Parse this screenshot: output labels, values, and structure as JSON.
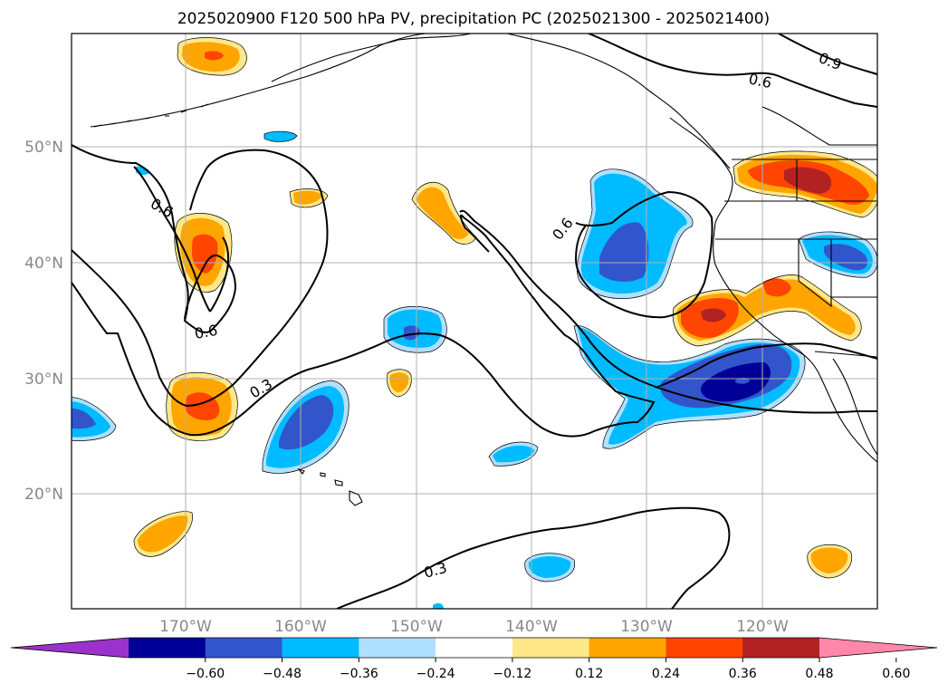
{
  "title": "2025020900 F120 500 hPa PV, precipitation PC (2025021300 - 2025021400)",
  "map": {
    "lon_range": [
      -180,
      -110
    ],
    "lat_range": [
      10,
      60
    ],
    "lat_labels": [
      "50°N",
      "40°N",
      "30°N",
      "20°N"
    ],
    "lon_labels": [
      "170°W",
      "160°W",
      "150°W",
      "140°W",
      "130°W",
      "120°W"
    ]
  },
  "contour_labels": [
    "0.9",
    "0.6",
    "0.6",
    "0.6",
    "0.6",
    "0.3",
    "0.3"
  ],
  "colorbar": {
    "ticks": [
      "−0.60",
      "−0.48",
      "−0.36",
      "−0.24",
      "−0.12",
      "0.12",
      "0.24",
      "0.36",
      "0.48",
      "0.60"
    ],
    "colors": [
      "#9933cc",
      "#000099",
      "#3355cc",
      "#00bbff",
      "#b0e0ff",
      "#ffffff",
      "#ffe88a",
      "#ffa500",
      "#ff4500",
      "#b22222",
      "#ff88aa"
    ]
  },
  "legend_colors": {
    "neg_extreme": "#9933cc",
    "neg_strong": "#000099",
    "neg_mid": "#3355cc",
    "neg_light": "#00bbff",
    "neg_faint": "#b0e0ff",
    "pos_faint": "#ffe88a",
    "pos_light": "#ffa500",
    "pos_mid": "#ff4500",
    "pos_strong": "#b22222",
    "pos_extreme": "#ff88aa"
  }
}
